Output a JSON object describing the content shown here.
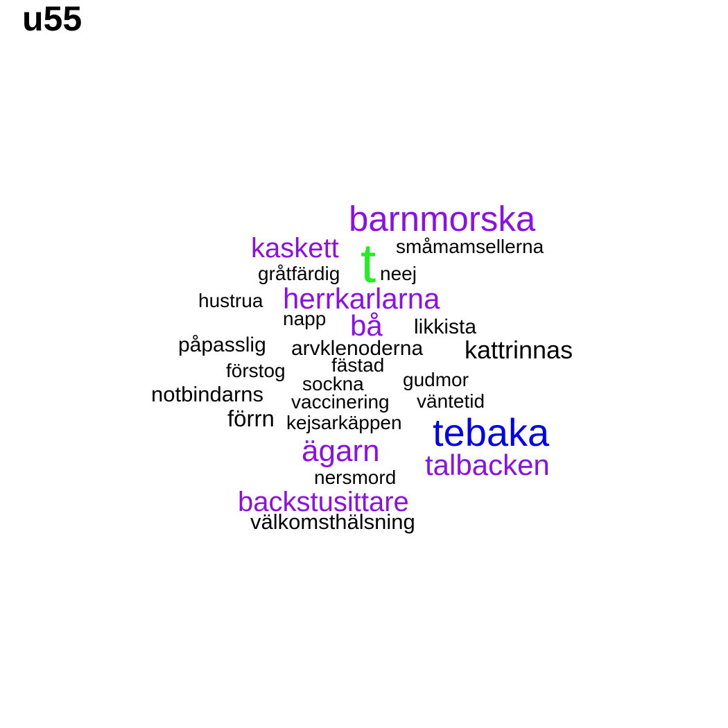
{
  "title": "u55",
  "palette": {
    "black": "#000000",
    "purple": "#8B10E8",
    "blue": "#0000EE",
    "green": "#22EE22"
  },
  "words": [
    {
      "text": "barnmorska",
      "color": "purple"
    },
    {
      "text": "kaskett",
      "color": "purple"
    },
    {
      "text": "t",
      "color": "green"
    },
    {
      "text": "småmamsellerna",
      "color": "black"
    },
    {
      "text": "gråtfärdig",
      "color": "black"
    },
    {
      "text": "neej",
      "color": "black"
    },
    {
      "text": "hustrua",
      "color": "black"
    },
    {
      "text": "herrkarlarna",
      "color": "purple"
    },
    {
      "text": "napp",
      "color": "black"
    },
    {
      "text": "bå",
      "color": "purple"
    },
    {
      "text": "likkista",
      "color": "black"
    },
    {
      "text": "påpasslig",
      "color": "black"
    },
    {
      "text": "arvklenoderna",
      "color": "black"
    },
    {
      "text": "kattrinnas",
      "color": "black"
    },
    {
      "text": "fästad",
      "color": "black"
    },
    {
      "text": "förstog",
      "color": "black"
    },
    {
      "text": "sockna",
      "color": "black"
    },
    {
      "text": "gudmor",
      "color": "black"
    },
    {
      "text": "notbindarns",
      "color": "black"
    },
    {
      "text": "vaccinering",
      "color": "black"
    },
    {
      "text": "väntetid",
      "color": "black"
    },
    {
      "text": "förrn",
      "color": "black"
    },
    {
      "text": "kejsarkäppen",
      "color": "black"
    },
    {
      "text": "tebaka",
      "color": "blue"
    },
    {
      "text": "ägarn",
      "color": "purple"
    },
    {
      "text": "talbacken",
      "color": "purple"
    },
    {
      "text": "nersmord",
      "color": "black"
    },
    {
      "text": "backstusittare",
      "color": "purple"
    },
    {
      "text": "välkomsthälsning",
      "color": "black"
    }
  ]
}
